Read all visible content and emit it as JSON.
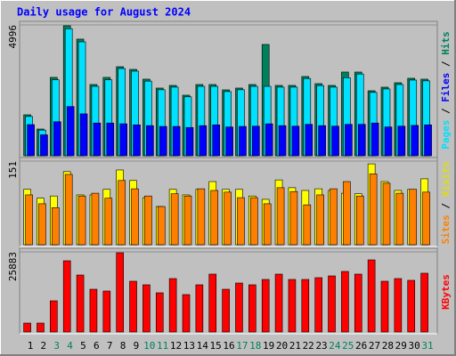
{
  "title": "Daily usage for August 2024",
  "legend_separator": " / ",
  "chart_data": [
    {
      "type": "bar",
      "ylim": [
        0,
        4996
      ],
      "yticks": [
        4996
      ],
      "draw_order": [
        2,
        0,
        1
      ],
      "series": [
        {
          "name": "Pages",
          "color": "#00e0ff",
          "values": [
            1500,
            980,
            2900,
            4850,
            4350,
            2650,
            2900,
            3330,
            3230,
            2850,
            2520,
            2620,
            2250,
            2650,
            2650,
            2450,
            2520,
            2650,
            2650,
            2620,
            2620,
            2950,
            2680,
            2620,
            2980,
            3120,
            2420,
            2550,
            2720,
            2890,
            2860
          ]
        },
        {
          "name": "Files",
          "color": "#0000ff",
          "values": [
            1190,
            800,
            1300,
            1880,
            1600,
            1250,
            1250,
            1220,
            1180,
            1150,
            1120,
            1120,
            1080,
            1150,
            1180,
            1100,
            1120,
            1130,
            1220,
            1150,
            1130,
            1200,
            1150,
            1130,
            1200,
            1200,
            1250,
            1100,
            1130,
            1160,
            1180
          ]
        },
        {
          "name": "Hits",
          "color": "#00805c",
          "values": [
            1564,
            1020,
            2992,
            4964,
            4454,
            2720,
            2992,
            3400,
            3298,
            2924,
            2584,
            2686,
            2312,
            2720,
            2720,
            2516,
            2584,
            2720,
            4250,
            2686,
            2686,
            3026,
            2754,
            2686,
            3196,
            3196,
            2482,
            2618,
            2788,
            2958,
            2924
          ]
        }
      ]
    },
    {
      "type": "bar",
      "ylim": [
        0,
        151
      ],
      "yticks": [
        151
      ],
      "draw_order": [
        1,
        0
      ],
      "series": [
        {
          "name": "Sites",
          "color": "#ff8000",
          "values": [
            90,
            74,
            67,
            127,
            88,
            93,
            84,
            116,
            101,
            88,
            69,
            92,
            88,
            101,
            98,
            95,
            85,
            85,
            74,
            103,
            96,
            72,
            90,
            101,
            114,
            88,
            128,
            111,
            93,
            100,
            95
          ]
        },
        {
          "name": "Visits",
          "color": "#ffff00",
          "values": [
            100,
            84,
            88,
            132,
            90,
            90,
            100,
            135,
            116,
            85,
            69,
            100,
            90,
            100,
            114,
            100,
            100,
            88,
            82,
            117,
            103,
            98,
            101,
            98,
            93,
            92,
            146,
            114,
            98,
            100,
            119
          ]
        }
      ]
    },
    {
      "type": "bar",
      "ylim": [
        0,
        25883
      ],
      "yticks": [
        25883
      ],
      "draw_order": [
        0
      ],
      "categories": [
        "1",
        "2",
        "3",
        "4",
        "5",
        "6",
        "7",
        "8",
        "9",
        "10",
        "11",
        "12",
        "13",
        "14",
        "15",
        "16",
        "17",
        "18",
        "19",
        "20",
        "21",
        "22",
        "23",
        "24",
        "25",
        "26",
        "27",
        "28",
        "29",
        "30",
        "31"
      ],
      "category_colors": [
        "#000",
        "#000",
        "#00805c",
        "#00805c",
        "#000",
        "#000",
        "#000",
        "#000",
        "#000",
        "#00805c",
        "#00805c",
        "#000",
        "#000",
        "#000",
        "#000",
        "#000",
        "#00805c",
        "#00805c",
        "#000",
        "#000",
        "#000",
        "#000",
        "#000",
        "#00805c",
        "#00805c",
        "#000",
        "#000",
        "#000",
        "#000",
        "#000",
        "#00805c"
      ],
      "series": [
        {
          "name": "KBytes",
          "color": "#ff0000",
          "values": [
            2876,
            2876,
            10066,
            23008,
            18406,
            13805,
            13230,
            25596,
            16393,
            15243,
            12654,
            17256,
            12079,
            15243,
            18694,
            13805,
            15818,
            15243,
            16968,
            18694,
            16968,
            16968,
            17544,
            18119,
            19557,
            18694,
            23296,
            16393,
            17256,
            16681,
            18982
          ]
        }
      ]
    }
  ]
}
